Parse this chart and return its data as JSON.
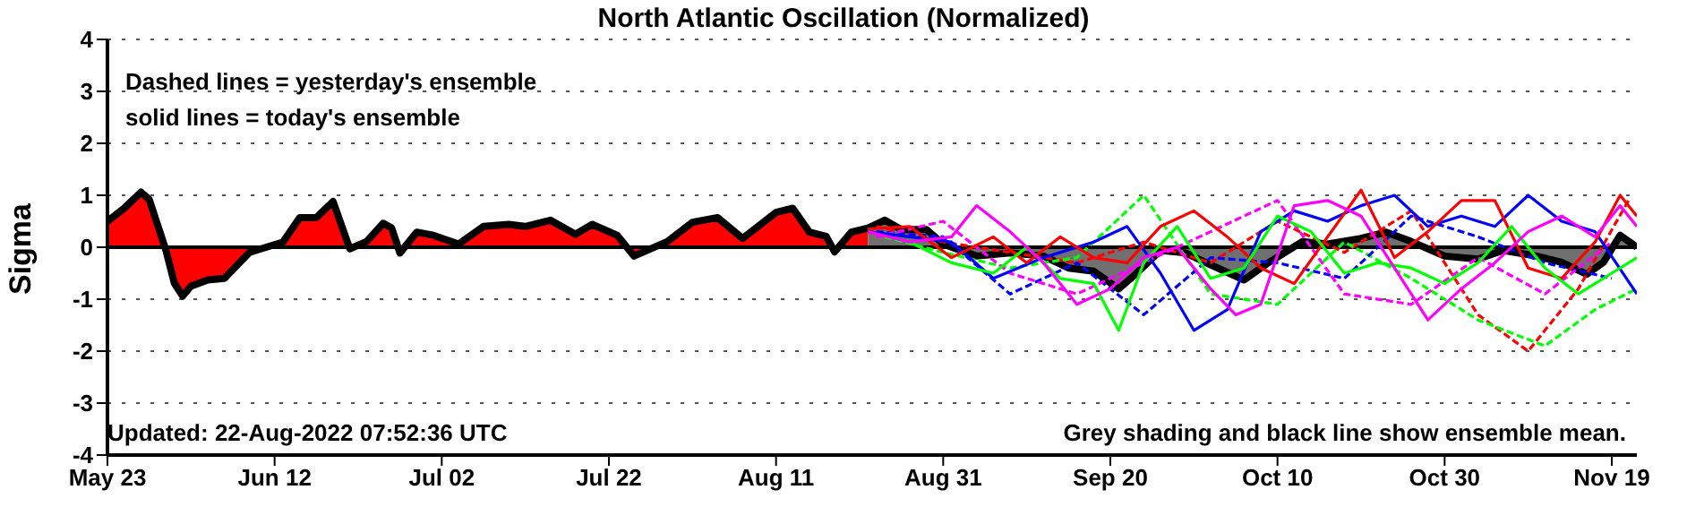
{
  "chart_data": {
    "type": "line",
    "title": "North Atlantic Oscillation (Normalized)",
    "ylabel": "Sigma",
    "annotations": [
      "Dashed lines = yesterday's ensemble",
      "solid lines = today's ensemble",
      "Updated: 22-Aug-2022 07:52:36 UTC",
      "Grey shading and black line show ensemble mean."
    ],
    "xlim": [
      "2022-05-23",
      "2022-11-22"
    ],
    "xticks": [
      {
        "value": "2022-05-23",
        "label": "May 23"
      },
      {
        "value": "2022-06-12",
        "label": "Jun 12"
      },
      {
        "value": "2022-07-02",
        "label": "Jul 02"
      },
      {
        "value": "2022-07-22",
        "label": "Jul 22"
      },
      {
        "value": "2022-08-11",
        "label": "Aug 11"
      },
      {
        "value": "2022-08-31",
        "label": "Aug 31"
      },
      {
        "value": "2022-09-20",
        "label": "Sep 20"
      },
      {
        "value": "2022-10-10",
        "label": "Oct 10"
      },
      {
        "value": "2022-10-30",
        "label": "Oct 30"
      },
      {
        "value": "2022-11-19",
        "label": "Nov 19"
      }
    ],
    "ylim": [
      -4,
      4
    ],
    "yticks": [
      -4,
      -3,
      -2,
      -1,
      0,
      1,
      2,
      3,
      4
    ],
    "grid": "y",
    "legend": false,
    "ref_lines": [
      {
        "axis": "y",
        "value": 0,
        "color": "#000000"
      }
    ],
    "series": [
      {
        "color": "#ff0000",
        "line_style": "dashed",
        "x": [
          "2022-08-23",
          "2022-08-31",
          "2022-09-08",
          "2022-09-16",
          "2022-09-24",
          "2022-10-02",
          "2022-10-10",
          "2022-10-18",
          "2022-10-26",
          "2022-11-03",
          "2022-11-09",
          "2022-11-15",
          "2022-11-21"
        ],
        "values": [
          0.4,
          0.1,
          -0.1,
          -0.3,
          0.1,
          -0.3,
          0.5,
          -0.1,
          0.7,
          -1.3,
          -2.0,
          -0.8,
          0.9
        ]
      },
      {
        "color": "#00ff00",
        "line_style": "dashed",
        "x": [
          "2022-08-24",
          "2022-08-31",
          "2022-09-08",
          "2022-09-16",
          "2022-09-24",
          "2022-10-02",
          "2022-10-10",
          "2022-10-18",
          "2022-10-26",
          "2022-11-03",
          "2022-11-11",
          "2022-11-17",
          "2022-11-22"
        ],
        "values": [
          0.2,
          -0.1,
          -0.4,
          -0.2,
          1.0,
          -0.9,
          -1.1,
          0.1,
          -0.6,
          -1.4,
          -1.9,
          -1.2,
          -0.8
        ]
      },
      {
        "color": "#0000ff",
        "line_style": "dashed",
        "x": [
          "2022-08-23",
          "2022-08-31",
          "2022-09-08",
          "2022-09-16",
          "2022-09-24",
          "2022-10-02",
          "2022-10-10",
          "2022-10-18",
          "2022-10-26",
          "2022-11-03",
          "2022-11-11",
          "2022-11-19"
        ],
        "values": [
          0.3,
          0.2,
          -0.9,
          -0.3,
          -1.3,
          -0.2,
          -0.3,
          -0.6,
          0.6,
          0.2,
          -0.3,
          -0.6
        ]
      },
      {
        "color": "#ff00ff",
        "line_style": "dashed",
        "x": [
          "2022-08-23",
          "2022-08-31",
          "2022-09-08",
          "2022-09-16",
          "2022-09-24",
          "2022-10-02",
          "2022-10-10",
          "2022-10-18",
          "2022-10-26",
          "2022-11-03",
          "2022-11-11",
          "2022-11-19"
        ],
        "values": [
          0.2,
          0.5,
          -0.5,
          -0.9,
          -0.3,
          0.3,
          0.9,
          -0.9,
          -1.1,
          -0.2,
          -0.9,
          0.1
        ]
      },
      {
        "color": "#0000ff",
        "line_style": "solid",
        "x": [
          "2022-08-22",
          "2022-08-27",
          "2022-09-01",
          "2022-09-06",
          "2022-09-12",
          "2022-09-18",
          "2022-09-22",
          "2022-09-26",
          "2022-09-30",
          "2022-10-04",
          "2022-10-08",
          "2022-10-12",
          "2022-10-16",
          "2022-10-20",
          "2022-10-24",
          "2022-10-28",
          "2022-11-01",
          "2022-11-05",
          "2022-11-09",
          "2022-11-13",
          "2022-11-17",
          "2022-11-22"
        ],
        "values": [
          0.3,
          0.2,
          0.1,
          -0.6,
          -0.2,
          0.1,
          0.4,
          -0.5,
          -1.6,
          -1.2,
          0.3,
          0.7,
          0.5,
          0.8,
          1.0,
          0.4,
          0.6,
          0.4,
          1.0,
          0.5,
          0.3,
          -0.9
        ]
      },
      {
        "color": "#ff0000",
        "line_style": "solid",
        "x": [
          "2022-08-22",
          "2022-08-27",
          "2022-09-01",
          "2022-09-06",
          "2022-09-10",
          "2022-09-14",
          "2022-09-18",
          "2022-09-22",
          "2022-09-26",
          "2022-09-30",
          "2022-10-04",
          "2022-10-08",
          "2022-10-12",
          "2022-10-16",
          "2022-10-20",
          "2022-10-24",
          "2022-10-28",
          "2022-11-01",
          "2022-11-05",
          "2022-11-09",
          "2022-11-13",
          "2022-11-17",
          "2022-11-20",
          "2022-11-22"
        ],
        "values": [
          0.35,
          0.4,
          -0.2,
          0.2,
          -0.3,
          0.2,
          -0.2,
          -0.3,
          0.4,
          0.7,
          0.2,
          -0.4,
          -0.7,
          0.2,
          1.1,
          -0.2,
          0.3,
          0.9,
          0.9,
          -0.4,
          -0.6,
          0.1,
          1.0,
          0.6
        ]
      },
      {
        "color": "#00ff00",
        "line_style": "solid",
        "x": [
          "2022-08-27",
          "2022-09-01",
          "2022-09-06",
          "2022-09-10",
          "2022-09-14",
          "2022-09-18",
          "2022-09-21",
          "2022-09-24",
          "2022-09-28",
          "2022-10-02",
          "2022-10-06",
          "2022-10-10",
          "2022-10-14",
          "2022-10-18",
          "2022-10-22",
          "2022-10-26",
          "2022-10-30",
          "2022-11-03",
          "2022-11-07",
          "2022-11-11",
          "2022-11-15",
          "2022-11-19",
          "2022-11-22"
        ],
        "values": [
          0.1,
          -0.3,
          -0.5,
          0.0,
          -0.6,
          -0.7,
          -1.6,
          -0.3,
          0.4,
          -0.6,
          -0.4,
          0.6,
          0.3,
          -0.5,
          -0.3,
          -0.4,
          -0.7,
          -0.3,
          0.4,
          -0.4,
          -0.9,
          -0.5,
          -0.2
        ]
      },
      {
        "color": "#ff00ff",
        "line_style": "solid",
        "x": [
          "2022-08-22",
          "2022-08-27",
          "2022-09-01",
          "2022-09-04",
          "2022-09-08",
          "2022-09-12",
          "2022-09-16",
          "2022-09-20",
          "2022-09-24",
          "2022-09-28",
          "2022-10-02",
          "2022-10-05",
          "2022-10-08",
          "2022-10-12",
          "2022-10-16",
          "2022-10-20",
          "2022-10-24",
          "2022-10-28",
          "2022-11-01",
          "2022-11-05",
          "2022-11-09",
          "2022-11-13",
          "2022-11-17",
          "2022-11-20",
          "2022-11-22"
        ],
        "values": [
          0.3,
          0.1,
          0.2,
          0.8,
          0.3,
          -0.3,
          -1.1,
          -0.8,
          -0.2,
          0.0,
          -0.8,
          -1.3,
          -1.1,
          0.8,
          0.9,
          0.6,
          -0.4,
          -1.4,
          -0.8,
          -0.3,
          0.3,
          0.6,
          0.2,
          0.8,
          0.4
        ]
      },
      {
        "type": "area",
        "color": "#ff0000",
        "x": [
          "2022-05-23",
          "2022-05-25",
          "2022-05-27",
          "2022-05-28",
          "2022-05-30",
          "2022-05-31",
          "2022-06-01",
          "2022-06-02",
          "2022-06-04",
          "2022-06-06",
          "2022-06-09",
          "2022-06-11",
          "2022-06-13",
          "2022-06-15",
          "2022-06-17",
          "2022-06-19",
          "2022-06-21",
          "2022-06-23",
          "2022-06-25",
          "2022-06-26",
          "2022-06-27",
          "2022-06-29",
          "2022-07-01",
          "2022-07-04",
          "2022-07-07",
          "2022-07-10",
          "2022-07-12",
          "2022-07-15",
          "2022-07-18",
          "2022-07-20",
          "2022-07-23",
          "2022-07-25",
          "2022-07-29",
          "2022-08-01",
          "2022-08-04",
          "2022-08-07",
          "2022-08-11",
          "2022-08-13",
          "2022-08-15",
          "2022-08-17",
          "2022-08-18",
          "2022-08-20",
          "2022-08-22"
        ],
        "values": [
          0.5,
          0.75,
          1.06,
          0.92,
          -0.06,
          -0.69,
          -0.94,
          -0.75,
          -0.63,
          -0.6,
          -0.1,
          0,
          0.1,
          0.57,
          0.57,
          0.88,
          -0.03,
          0.11,
          0.46,
          0.37,
          -0.11,
          0.29,
          0.23,
          0.06,
          0.4,
          0.44,
          0.4,
          0.52,
          0.25,
          0.44,
          0.23,
          -0.17,
          0.11,
          0.48,
          0.57,
          0.17,
          0.67,
          0.75,
          0.29,
          0.21,
          -0.09,
          0.29,
          0.37
        ]
      },
      {
        "type": "area",
        "color": "#707070",
        "x": [
          "2022-08-22",
          "2022-08-24",
          "2022-08-26",
          "2022-08-29",
          "2022-08-31",
          "2022-09-04",
          "2022-09-08",
          "2022-09-12",
          "2022-09-15",
          "2022-09-18",
          "2022-09-21",
          "2022-09-23",
          "2022-09-26",
          "2022-09-29",
          "2022-10-02",
          "2022-10-06",
          "2022-10-09",
          "2022-10-13",
          "2022-10-16",
          "2022-10-20",
          "2022-10-23",
          "2022-10-26",
          "2022-10-30",
          "2022-11-03",
          "2022-11-06",
          "2022-11-10",
          "2022-11-13",
          "2022-11-16",
          "2022-11-18",
          "2022-11-20",
          "2022-11-22"
        ],
        "values": [
          0.37,
          0.52,
          0.34,
          0.34,
          0.06,
          -0.17,
          -0.11,
          -0.17,
          -0.4,
          -0.46,
          -0.8,
          -0.52,
          -0.06,
          -0.11,
          -0.34,
          -0.63,
          -0.29,
          0.11,
          0.06,
          0.17,
          0.29,
          0.11,
          -0.17,
          -0.23,
          -0.06,
          -0.17,
          -0.29,
          -0.52,
          -0.29,
          0.23,
          0
        ]
      }
    ]
  }
}
